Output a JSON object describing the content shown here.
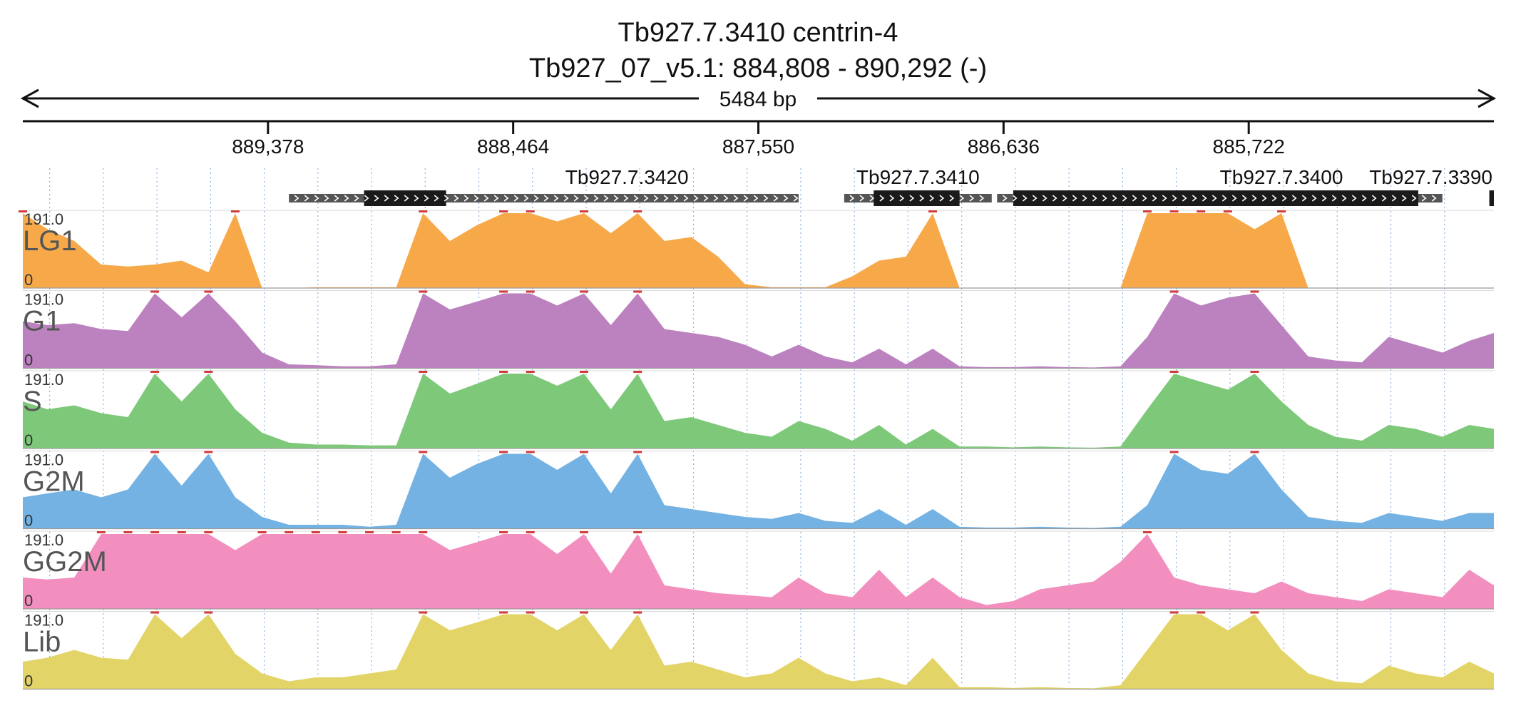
{
  "chart_data": {
    "type": "area",
    "title": "Tb927.7.3410  centrin-4",
    "subtitle": "Tb927_07_v5.1: 884,808 - 890,292 (-)",
    "span_label": "5484 bp",
    "region": {
      "start": 884808,
      "end": 890292,
      "strand": "-"
    },
    "ticks": [
      "889,378",
      "888,464",
      "887,550",
      "886,636",
      "885,722"
    ],
    "tick_positions": [
      889378,
      888464,
      887550,
      886636,
      885722
    ],
    "ylim": [
      0,
      191.0
    ],
    "scale_max_label": "191.0",
    "scale_min_label": "0",
    "genes": [
      {
        "name": "Tb927.7.3420",
        "start": 887400,
        "end": 889300,
        "cds": [
          888714,
          889020
        ]
      },
      {
        "name": "Tb927.7.3410",
        "start": 886680,
        "end": 887230,
        "cds": [
          886800,
          887120
        ]
      },
      {
        "name": "Tb927.7.3400",
        "start": 885000,
        "end": 886660,
        "cds": [
          885090,
          886600
        ]
      },
      {
        "name": "Tb927.7.3390",
        "start": 884808,
        "end": 884825,
        "cds": [
          884808,
          884825
        ]
      }
    ],
    "x": [
      890292,
      890200,
      890100,
      890000,
      889900,
      889800,
      889700,
      889600,
      889500,
      889400,
      889300,
      889200,
      889100,
      889000,
      888900,
      888800,
      888700,
      888600,
      888500,
      888400,
      888300,
      888200,
      888100,
      888000,
      887900,
      887800,
      887700,
      887600,
      887500,
      887400,
      887300,
      887200,
      887100,
      887000,
      886900,
      886800,
      886700,
      886600,
      886500,
      886400,
      886300,
      886200,
      886100,
      886000,
      885900,
      885800,
      885700,
      885600,
      885500,
      885400,
      885300,
      885200,
      885100,
      885000,
      884900,
      884808
    ],
    "series": [
      {
        "name": "LG1",
        "color": "#f7a94a",
        "values": [
          191,
          150,
          120,
          60,
          55,
          60,
          70,
          40,
          191,
          0,
          0,
          2,
          2,
          2,
          2,
          191,
          120,
          160,
          191,
          191,
          170,
          191,
          140,
          191,
          120,
          130,
          80,
          10,
          2,
          2,
          2,
          30,
          70,
          80,
          191,
          0,
          0,
          0,
          0,
          0,
          0,
          0,
          191,
          191,
          191,
          191,
          150,
          191,
          0,
          0,
          0,
          0,
          0,
          0,
          0,
          0
        ]
      },
      {
        "name": "G1",
        "color": "#bb82bf",
        "values": [
          120,
          110,
          115,
          100,
          95,
          191,
          130,
          191,
          120,
          40,
          10,
          8,
          5,
          5,
          10,
          191,
          150,
          170,
          191,
          191,
          160,
          191,
          110,
          191,
          100,
          90,
          80,
          60,
          30,
          60,
          30,
          15,
          50,
          10,
          50,
          5,
          3,
          3,
          5,
          3,
          2,
          5,
          80,
          191,
          160,
          180,
          191,
          110,
          30,
          20,
          15,
          80,
          60,
          40,
          70,
          90
        ]
      },
      {
        "name": "S",
        "color": "#7ec87a",
        "values": [
          120,
          100,
          110,
          90,
          80,
          191,
          120,
          191,
          100,
          40,
          15,
          10,
          10,
          8,
          8,
          191,
          140,
          165,
          191,
          191,
          160,
          191,
          100,
          191,
          70,
          80,
          60,
          40,
          30,
          70,
          50,
          20,
          60,
          10,
          50,
          5,
          5,
          3,
          5,
          3,
          2,
          5,
          100,
          191,
          170,
          150,
          191,
          120,
          60,
          30,
          20,
          60,
          50,
          30,
          60,
          50
        ]
      },
      {
        "name": "G2M",
        "color": "#73b2e2",
        "values": [
          80,
          90,
          100,
          80,
          100,
          191,
          110,
          191,
          80,
          30,
          10,
          10,
          10,
          5,
          10,
          191,
          130,
          165,
          191,
          191,
          150,
          191,
          90,
          191,
          60,
          50,
          40,
          30,
          25,
          40,
          20,
          15,
          50,
          10,
          50,
          5,
          3,
          3,
          5,
          3,
          2,
          5,
          60,
          191,
          150,
          140,
          191,
          100,
          30,
          20,
          15,
          40,
          30,
          20,
          40,
          40
        ]
      },
      {
        "name": "GG2M",
        "color": "#f28fbe",
        "values": [
          80,
          75,
          80,
          191,
          191,
          191,
          191,
          191,
          150,
          191,
          191,
          191,
          191,
          191,
          191,
          191,
          150,
          170,
          191,
          191,
          140,
          191,
          90,
          191,
          60,
          50,
          40,
          35,
          30,
          80,
          40,
          30,
          100,
          30,
          80,
          30,
          10,
          20,
          50,
          60,
          70,
          120,
          191,
          80,
          60,
          50,
          40,
          70,
          40,
          30,
          20,
          50,
          40,
          30,
          100,
          60
        ]
      },
      {
        "name": "Lib",
        "color": "#e3d468",
        "values": [
          70,
          80,
          100,
          80,
          75,
          191,
          130,
          191,
          90,
          40,
          20,
          30,
          30,
          40,
          50,
          191,
          150,
          170,
          191,
          191,
          150,
          191,
          100,
          191,
          60,
          70,
          50,
          30,
          40,
          80,
          40,
          20,
          30,
          10,
          80,
          5,
          5,
          3,
          5,
          3,
          2,
          10,
          100,
          191,
          191,
          150,
          191,
          100,
          40,
          20,
          15,
          60,
          40,
          30,
          70,
          40
        ]
      }
    ]
  }
}
